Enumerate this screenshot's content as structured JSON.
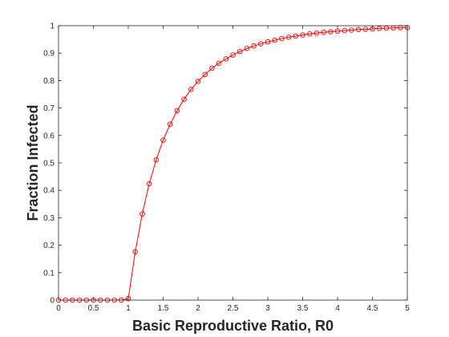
{
  "chart_data": {
    "type": "line",
    "title": "",
    "xlabel": "Basic Reproductive Ratio, R0",
    "ylabel": "Fraction Infected",
    "xlim": [
      0,
      5
    ],
    "ylim": [
      0,
      1
    ],
    "grid": false,
    "xticks": [
      0,
      0.5,
      1,
      1.5,
      2,
      2.5,
      3,
      3.5,
      4,
      4.5,
      5
    ],
    "xtick_labels": [
      "0",
      "0.5",
      "1",
      "1.5",
      "2",
      "2.5",
      "3",
      "3.5",
      "4",
      "4.5",
      "5"
    ],
    "yticks": [
      0,
      0.1,
      0.2,
      0.3,
      0.4,
      0.5,
      0.6,
      0.7,
      0.8,
      0.9,
      1
    ],
    "ytick_labels": [
      "0",
      "0.1",
      "0.2",
      "0.3",
      "0.4",
      "0.5",
      "0.6",
      "0.7",
      "0.8",
      "0.9",
      "1"
    ],
    "series": [
      {
        "color": "#ff0000",
        "marker": "circle",
        "x": [
          0,
          0.1,
          0.2,
          0.3,
          0.4,
          0.5,
          0.6,
          0.7,
          0.8,
          0.9,
          1.0,
          1.1,
          1.2,
          1.3,
          1.4,
          1.5,
          1.6,
          1.7,
          1.8,
          1.9,
          2.0,
          2.1,
          2.2,
          2.3,
          2.4,
          2.5,
          2.6,
          2.7,
          2.8,
          2.9,
          3.0,
          3.1,
          3.2,
          3.3,
          3.4,
          3.5,
          3.6,
          3.7,
          3.8,
          3.9,
          4.0,
          4.1,
          4.2,
          4.3,
          4.4,
          4.5,
          4.6,
          4.7,
          4.8,
          4.9,
          5.0
        ],
        "y": [
          0,
          0,
          0,
          0,
          0,
          0,
          0,
          0,
          0,
          0,
          0.005,
          0.176,
          0.314,
          0.424,
          0.511,
          0.583,
          0.641,
          0.69,
          0.732,
          0.768,
          0.797,
          0.822,
          0.845,
          0.863,
          0.879,
          0.893,
          0.906,
          0.917,
          0.926,
          0.934,
          0.941,
          0.947,
          0.953,
          0.958,
          0.962,
          0.966,
          0.97,
          0.973,
          0.976,
          0.978,
          0.98,
          0.982,
          0.984,
          0.986,
          0.987,
          0.988,
          0.99,
          0.991,
          0.992,
          0.993,
          0.993
        ]
      }
    ]
  }
}
